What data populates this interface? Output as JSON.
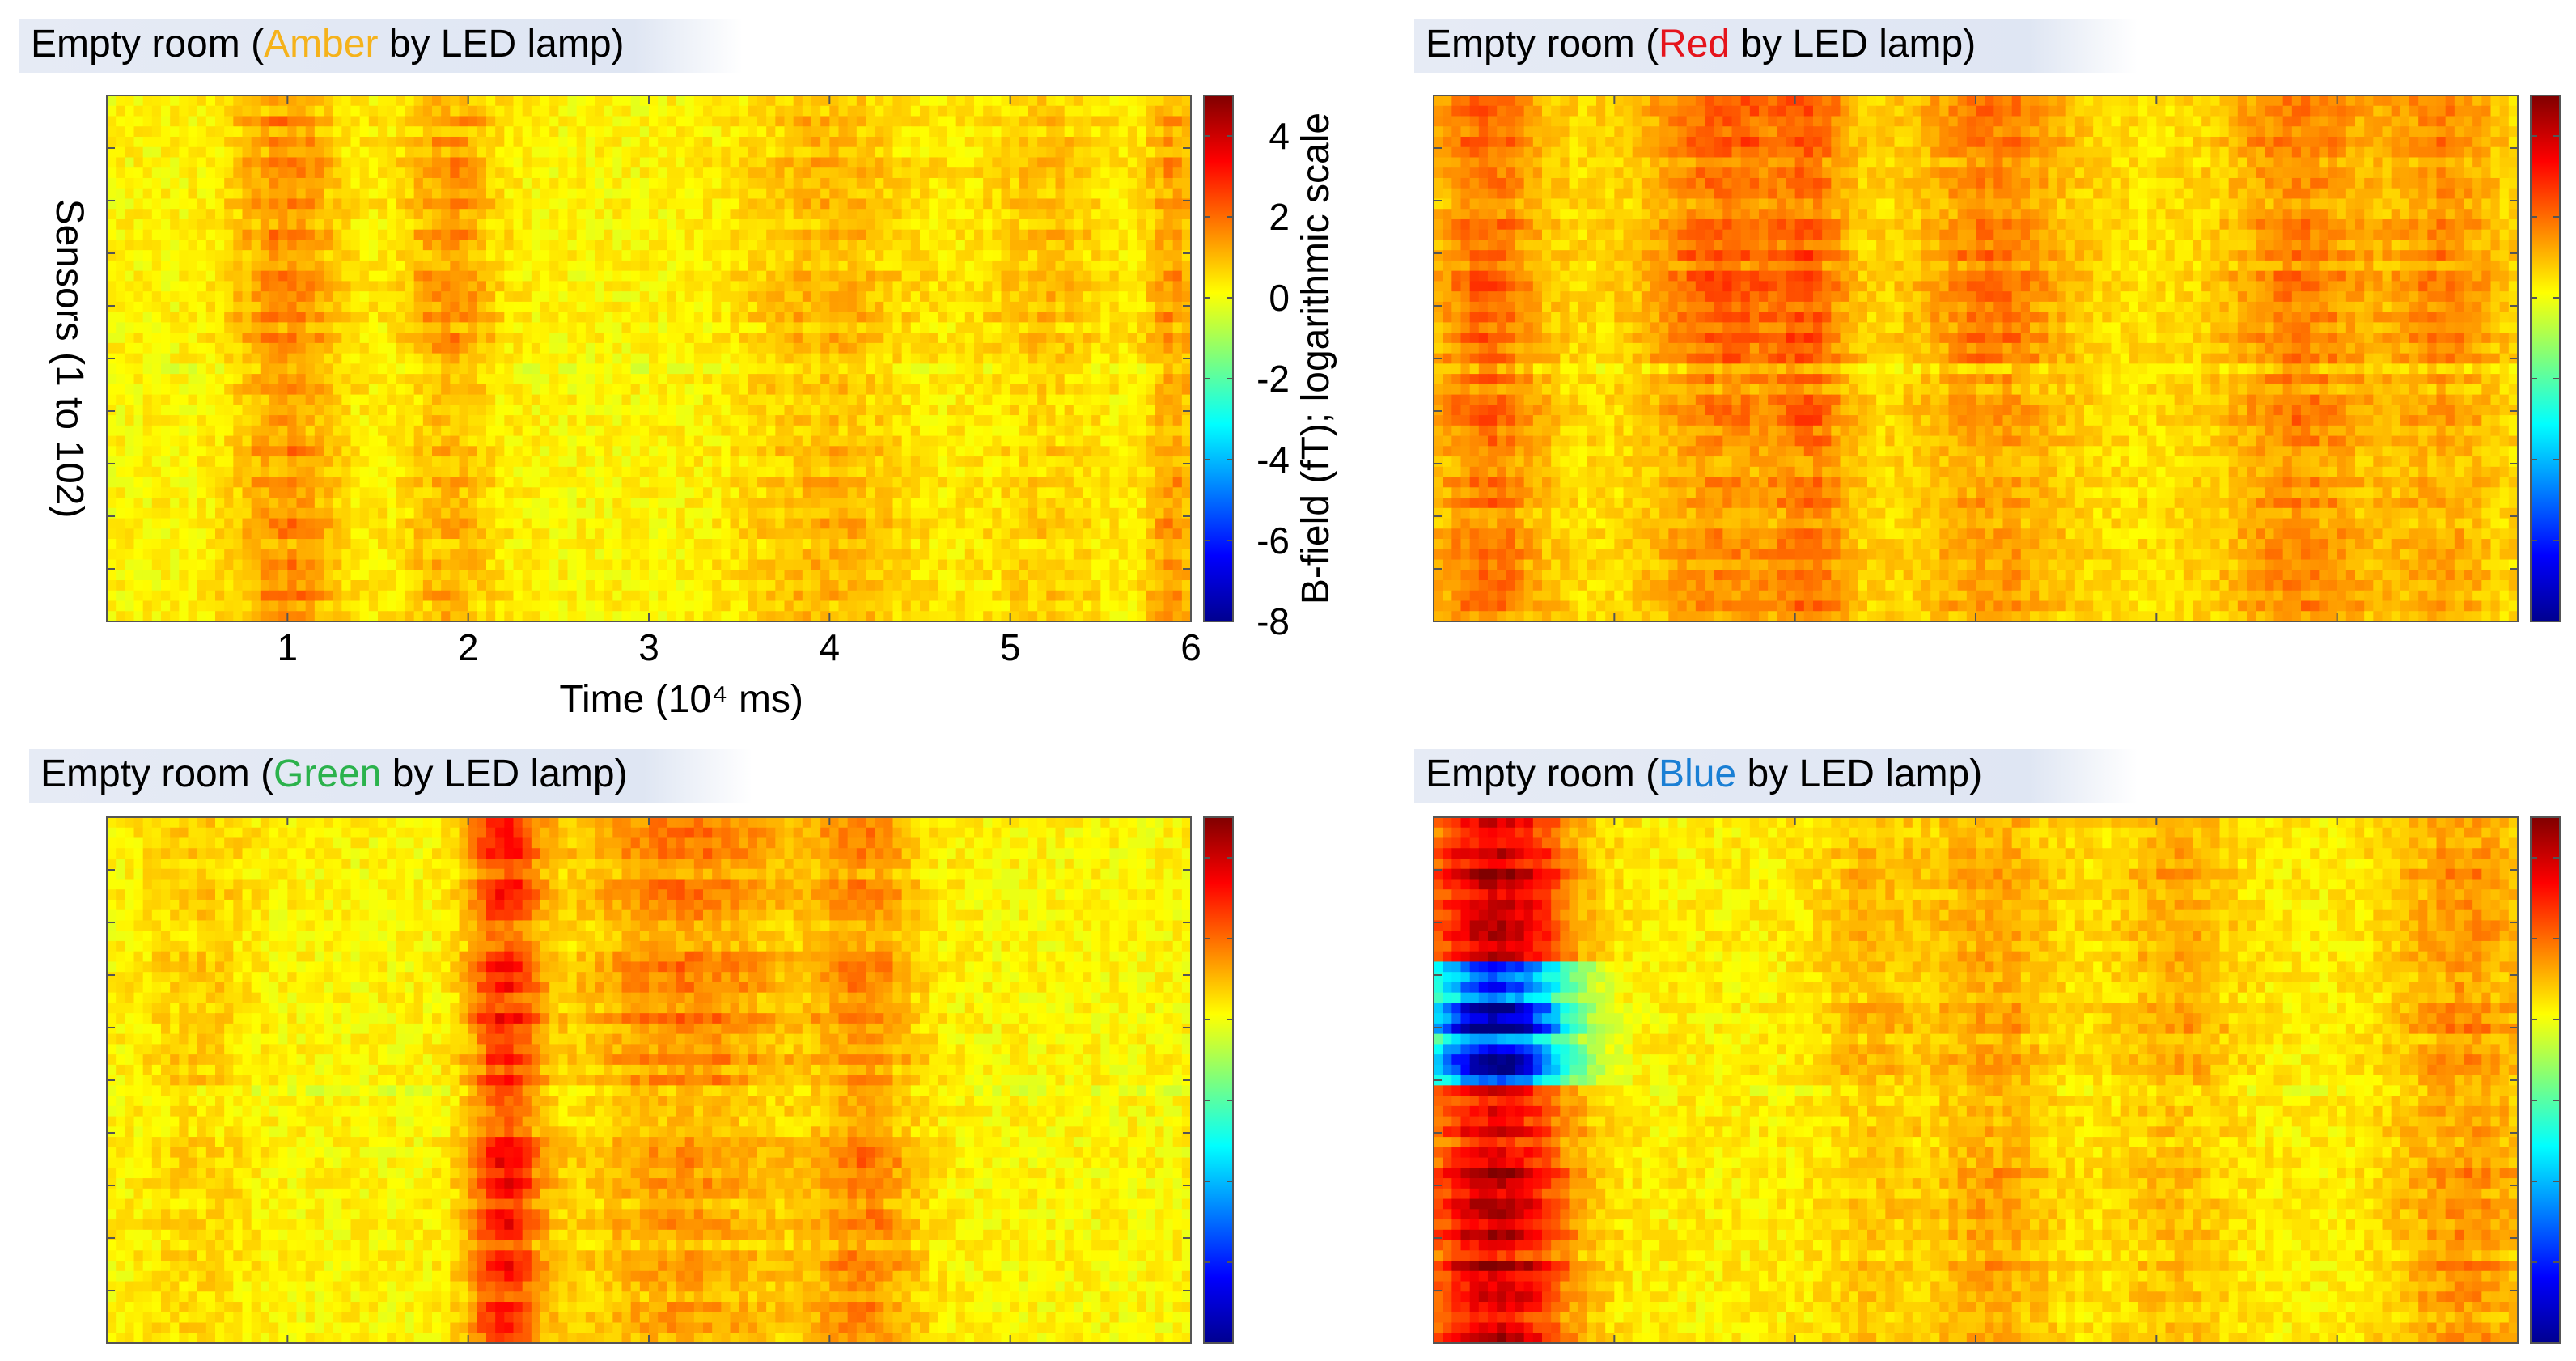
{
  "colors": {
    "amber": "#f5b21b",
    "red": "#e5141c",
    "green": "#2bb24c",
    "blue": "#1a7fd4",
    "title_band": "#dfe6f3"
  },
  "chart_data": [
    {
      "type": "heatmap",
      "panel": "amber",
      "title_prefix": "Empty room (",
      "title_highlight": "Amber",
      "title_suffix": " by LED lamp)",
      "xlabel": "Time (10⁴ ms)",
      "ylabel": "Sensors (1 to 102)",
      "x_range": [
        0,
        6
      ],
      "x_ticks": [
        1,
        2,
        3,
        4,
        5,
        6
      ],
      "y_range": [
        1,
        102
      ],
      "colorbar_label": "B-field (fT); logarithmic scale",
      "colorbar_range": [
        -8,
        5
      ],
      "colorbar_ticks": [
        4,
        2,
        0,
        -2,
        -4,
        -6,
        -8
      ],
      "colormap": "jet",
      "events": [
        {
          "t": 1.0,
          "w": 0.3,
          "amp": 1.3
        },
        {
          "t": 1.9,
          "w": 0.25,
          "amp": 1.2
        },
        {
          "t": 4.0,
          "w": 0.5,
          "amp": 0.8
        },
        {
          "t": 5.2,
          "w": 0.35,
          "amp": 0.7
        },
        {
          "t": 5.9,
          "w": 0.15,
          "amp": 1.1
        }
      ],
      "baseline": 0.2
    },
    {
      "type": "heatmap",
      "panel": "red",
      "title_prefix": "Empty room (",
      "title_highlight": "Red",
      "title_suffix": " by LED lamp)",
      "x_range": [
        0,
        6
      ],
      "y_range": [
        1,
        102
      ],
      "colorbar_range": [
        -8,
        5
      ],
      "colormap": "jet",
      "events": [
        {
          "t": 0.3,
          "w": 0.3,
          "amp": 1.4
        },
        {
          "t": 1.6,
          "w": 0.4,
          "amp": 1.5
        },
        {
          "t": 2.1,
          "w": 0.2,
          "amp": 1.2
        },
        {
          "t": 3.1,
          "w": 0.4,
          "amp": 1.2
        },
        {
          "t": 4.8,
          "w": 0.4,
          "amp": 1.1
        },
        {
          "t": 5.6,
          "w": 0.3,
          "amp": 1.0
        }
      ],
      "baseline": 0.5
    },
    {
      "type": "heatmap",
      "panel": "green",
      "title_prefix": "Empty room (",
      "title_highlight": "Green",
      "title_suffix": " by LED lamp)",
      "x_range": [
        0,
        6
      ],
      "y_range": [
        1,
        102
      ],
      "colorbar_range": [
        -8,
        5
      ],
      "colormap": "jet",
      "events": [
        {
          "t": 2.2,
          "w": 0.2,
          "amp": 2.6
        },
        {
          "t": 3.2,
          "w": 0.6,
          "amp": 1.5
        },
        {
          "t": 4.2,
          "w": 0.3,
          "amp": 1.3
        },
        {
          "t": 0.5,
          "w": 0.3,
          "amp": 0.6
        }
      ],
      "baseline": 0.2
    },
    {
      "type": "heatmap",
      "panel": "blue",
      "title_prefix": "Empty room (",
      "title_highlight": "Blue",
      "title_suffix": " by LED lamp)",
      "x_range": [
        0,
        6
      ],
      "y_range": [
        1,
        102
      ],
      "colorbar_range": [
        -8,
        5
      ],
      "colormap": "jet",
      "events": [
        {
          "t": 0.35,
          "w": 0.4,
          "amp": 3.8
        },
        {
          "t": 2.4,
          "w": 0.3,
          "amp": 0.7
        },
        {
          "t": 3.1,
          "w": 0.35,
          "amp": 1.0
        },
        {
          "t": 4.1,
          "w": 0.35,
          "amp": 0.9
        },
        {
          "t": 5.7,
          "w": 0.4,
          "amp": 1.2
        }
      ],
      "baseline": 0.3
    }
  ]
}
